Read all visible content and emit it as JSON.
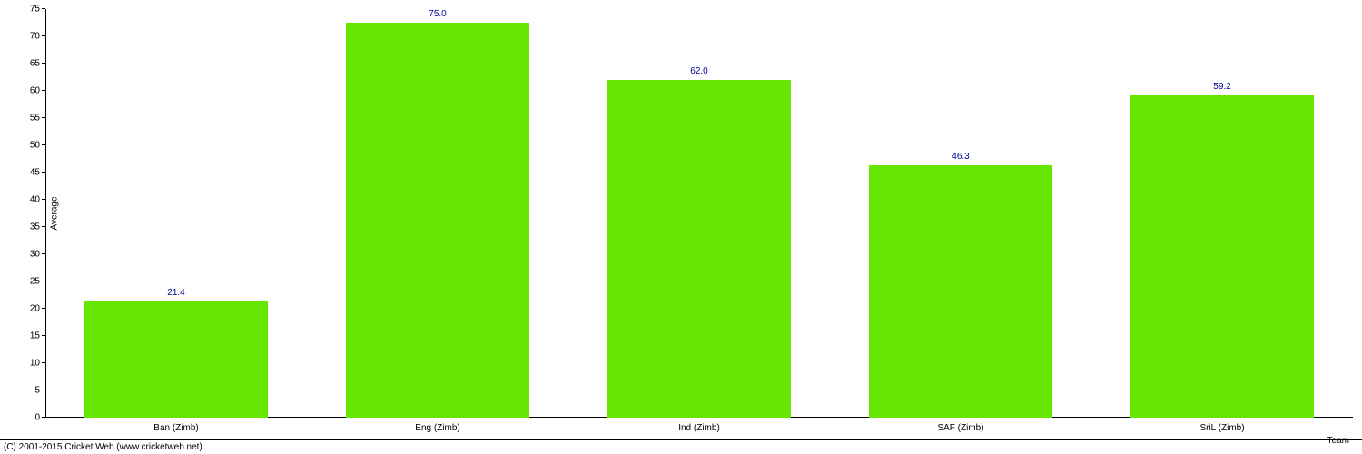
{
  "chart": {
    "type": "bar",
    "ylabel": "Average",
    "xlabel": "Team",
    "ylim": [
      0,
      75
    ],
    "ytick_step": 5,
    "yticks": [
      0,
      5,
      10,
      15,
      20,
      25,
      30,
      35,
      40,
      45,
      50,
      55,
      60,
      65,
      70,
      75
    ],
    "categories": [
      "Ban (Zimb)",
      "Eng (Zimb)",
      "Ind (Zimb)",
      "SAF (Zimb)",
      "SriL (Zimb)"
    ],
    "values": [
      21.4,
      75.0,
      62.0,
      46.3,
      59.2
    ],
    "value_labels": [
      "21.4",
      "75.0",
      "62.0",
      "46.3",
      "59.2"
    ],
    "bar_color": "#66e600",
    "value_label_color": "#000099",
    "background_color": "#ffffff",
    "axis_color": "#000000",
    "text_color": "#000000",
    "label_fontsize": 10,
    "bar_width": 0.7
  },
  "copyright": "(C) 2001-2015 Cricket Web (www.cricketweb.net)"
}
